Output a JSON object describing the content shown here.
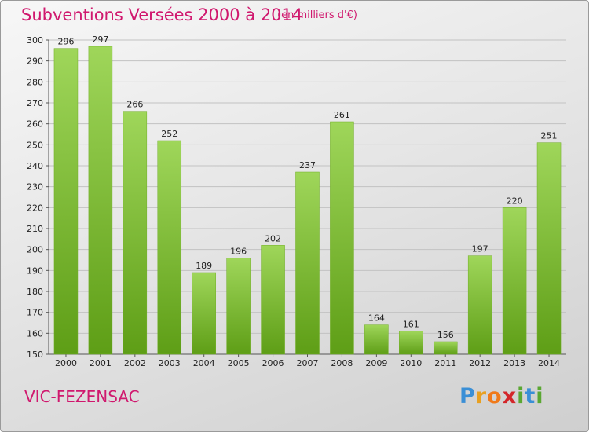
{
  "title": "Subventions Versées 2000 à 2014",
  "subtitle": "(en milliers d'€)",
  "commune": "VIC-FEZENSAC",
  "brand": "Proxiti",
  "colors": {
    "title": "#d0186e",
    "bar_light": "#9fd65a",
    "bar_dark": "#5e9e16",
    "grid": "#c2c2c2",
    "axis": "#555555"
  },
  "chart_data": {
    "type": "bar",
    "title": "Subventions Versées 2000 à 2014",
    "xlabel": "",
    "ylabel": "",
    "categories": [
      "2000",
      "2001",
      "2002",
      "2003",
      "2004",
      "2005",
      "2006",
      "2007",
      "2008",
      "2009",
      "2010",
      "2011",
      "2012",
      "2013",
      "2014"
    ],
    "values": [
      296,
      297,
      266,
      252,
      189,
      196,
      202,
      237,
      261,
      164,
      161,
      156,
      197,
      220,
      251
    ],
    "ylim": [
      150,
      300
    ],
    "yticks": [
      150,
      160,
      170,
      180,
      190,
      200,
      210,
      220,
      230,
      240,
      250,
      260,
      270,
      280,
      290,
      300
    ],
    "grid": true,
    "data_labels": true
  }
}
